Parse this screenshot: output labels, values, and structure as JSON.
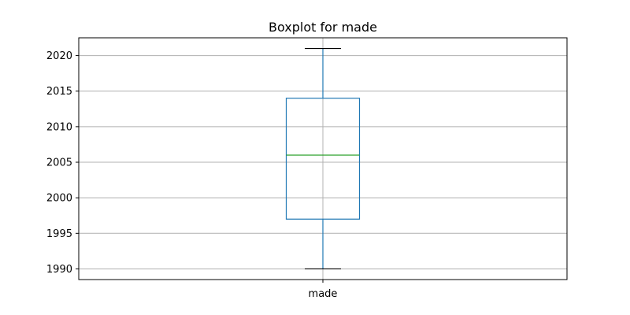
{
  "chart_data": {
    "type": "box",
    "title": "Boxplot for made",
    "xlabel": "",
    "ylabel": "",
    "categories": [
      "made"
    ],
    "boxes": [
      {
        "category": "made",
        "whisker_low": 1990,
        "q1": 1997,
        "median": 2006,
        "q3": 2014,
        "whisker_high": 2021
      }
    ],
    "yticks": [
      1990,
      1995,
      2000,
      2005,
      2010,
      2015,
      2020
    ],
    "ylim": [
      1988.5,
      2022.5
    ],
    "grid": true
  },
  "colors": {
    "box": "#1f77b4",
    "median": "#2ca02c",
    "whisker_cap": "#000000",
    "grid": "#b0b0b0",
    "axes": "#000000"
  }
}
